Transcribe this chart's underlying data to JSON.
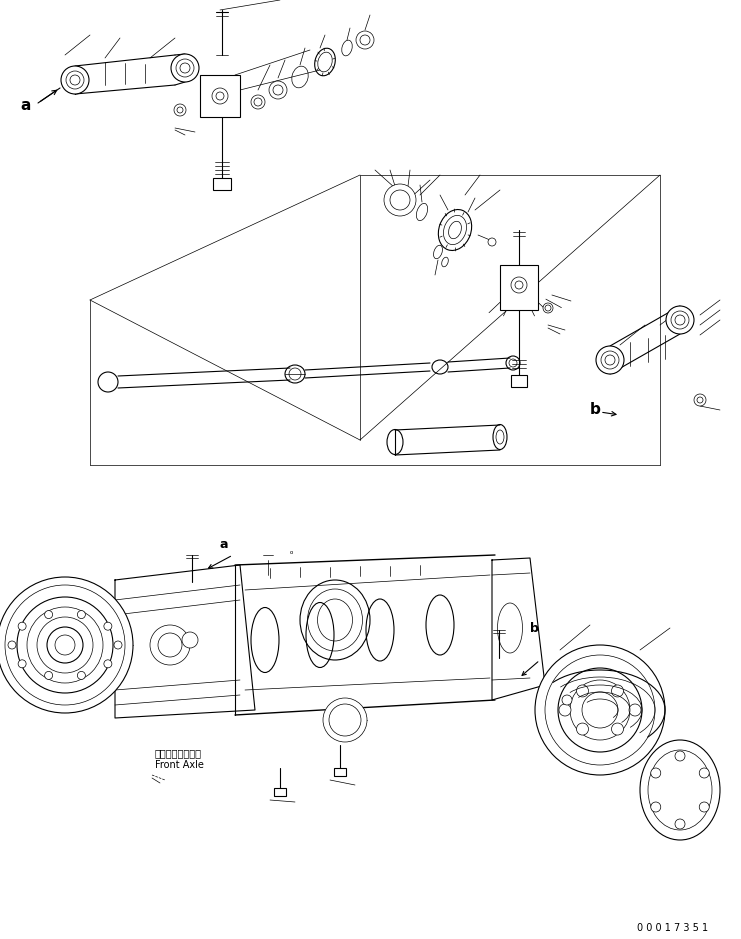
{
  "background_color": "#ffffff",
  "line_color": "#000000",
  "figure_width": 7.41,
  "figure_height": 9.39,
  "dpi": 100,
  "serial_number": "0 0 0 1 7 3 5 1",
  "label_a_top": "a",
  "label_b_right": "b",
  "label_a_bottom": "a",
  "label_b_bottom": "b",
  "front_axle_jp": "フロントアクスル",
  "front_axle_en": "Front Axle"
}
